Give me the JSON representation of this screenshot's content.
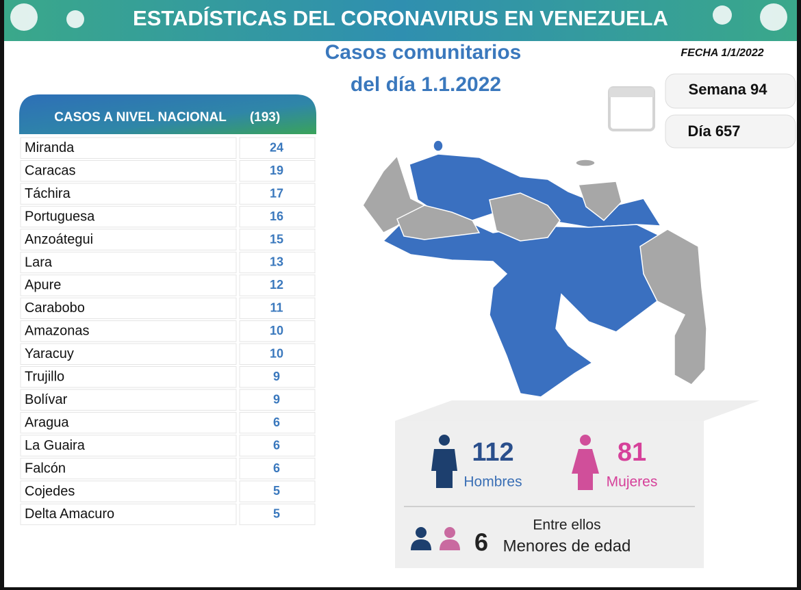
{
  "header": {
    "title": "ESTADÍSTICAS DEL CORONAVIRUS EN VENEZUELA"
  },
  "subtitle": [
    "Casos comunitarios",
    "del día 1.1.2022"
  ],
  "date": "FECHA 1/1/2022",
  "week": "Semana 94",
  "day": "Día 657",
  "table": {
    "title": "CASOS A NIVEL NACIONAL",
    "total": "(193)",
    "rows": [
      [
        "Miranda",
        24
      ],
      [
        "Caracas",
        19
      ],
      [
        "Táchira",
        17
      ],
      [
        "Portuguesa",
        16
      ],
      [
        "Anzoátegui",
        15
      ],
      [
        "Lara",
        13
      ],
      [
        "Apure",
        12
      ],
      [
        "Carabobo",
        11
      ],
      [
        "Amazonas",
        10
      ],
      [
        "Yaracuy",
        10
      ],
      [
        "Trujillo",
        9
      ],
      [
        "Bolívar",
        9
      ],
      [
        "Aragua",
        6
      ],
      [
        "La Guaira",
        6
      ],
      [
        "Falcón",
        6
      ],
      [
        "Cojedes",
        5
      ],
      [
        "Delta Amacuro",
        5
      ]
    ]
  },
  "gender": {
    "men": {
      "count": 112,
      "label": "Hombres"
    },
    "women": {
      "count": 81,
      "label": "Mujeres"
    }
  },
  "minors": {
    "intro": "Entre ellos",
    "count": 6,
    "label": "Menores de edad"
  }
}
